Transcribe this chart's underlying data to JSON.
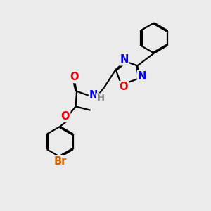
{
  "bg_color": "#ebebeb",
  "bond_color": "#000000",
  "N_color": "#0000ee",
  "O_color": "#ee0000",
  "Br_color": "#cc6600",
  "H_color": "#888888",
  "lw": 1.6,
  "dbo": 0.048,
  "fs": 10.5,
  "xlim": [
    0,
    10
  ],
  "ylim": [
    0,
    10
  ]
}
